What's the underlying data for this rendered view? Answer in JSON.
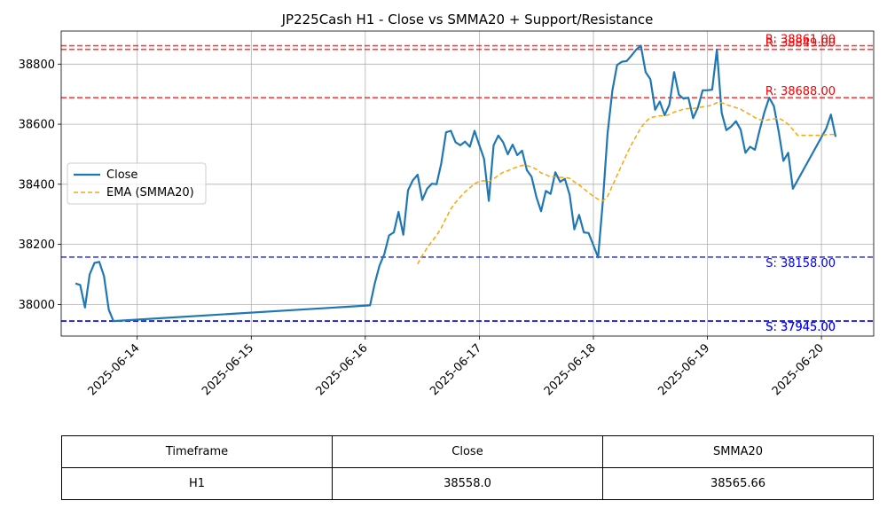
{
  "chart_data": {
    "type": "line",
    "title": "JP225Cash H1 - Close vs SMMA20 + Support/Resistance",
    "xlabel": "",
    "ylabel": "",
    "x_range": [
      "2025-06-13T08:00",
      "2025-06-20T11:00"
    ],
    "ylim": [
      37895,
      38910
    ],
    "grid": true,
    "legend_position": "center-left",
    "x_ticks": [
      "2025-06-14",
      "2025-06-15",
      "2025-06-16",
      "2025-06-17",
      "2025-06-18",
      "2025-06-19",
      "2025-06-20"
    ],
    "y_ticks": [
      38000,
      38200,
      38400,
      38600,
      38800
    ],
    "series": [
      {
        "name": "Close",
        "color": "#1f77b4",
        "style": "solid",
        "points": [
          [
            "2025-06-13T11:00",
            38070
          ],
          [
            "2025-06-13T12:00",
            38065
          ],
          [
            "2025-06-13T13:00",
            37990
          ],
          [
            "2025-06-13T14:00",
            38100
          ],
          [
            "2025-06-13T15:00",
            38138
          ],
          [
            "2025-06-13T16:00",
            38142
          ],
          [
            "2025-06-13T17:00",
            38095
          ],
          [
            "2025-06-13T18:00",
            37983
          ],
          [
            "2025-06-13T19:00",
            37945
          ],
          [
            "2025-06-16T01:00",
            37997
          ],
          [
            "2025-06-16T02:00",
            38070
          ],
          [
            "2025-06-16T03:00",
            38130
          ],
          [
            "2025-06-16T04:00",
            38168
          ],
          [
            "2025-06-16T05:00",
            38230
          ],
          [
            "2025-06-16T06:00",
            38240
          ],
          [
            "2025-06-16T07:00",
            38308
          ],
          [
            "2025-06-16T08:00",
            38232
          ],
          [
            "2025-06-16T09:00",
            38380
          ],
          [
            "2025-06-16T10:00",
            38413
          ],
          [
            "2025-06-16T11:00",
            38432
          ],
          [
            "2025-06-16T12:00",
            38348
          ],
          [
            "2025-06-16T13:00",
            38385
          ],
          [
            "2025-06-16T14:00",
            38402
          ],
          [
            "2025-06-16T15:00",
            38400
          ],
          [
            "2025-06-16T16:00",
            38470
          ],
          [
            "2025-06-16T17:00",
            38573
          ],
          [
            "2025-06-16T18:00",
            38578
          ],
          [
            "2025-06-16T19:00",
            38540
          ],
          [
            "2025-06-16T20:00",
            38530
          ],
          [
            "2025-06-16T21:00",
            38542
          ],
          [
            "2025-06-16T22:00",
            38525
          ],
          [
            "2025-06-16T23:00",
            38578
          ],
          [
            "2025-06-17T00:00",
            38530
          ],
          [
            "2025-06-17T01:00",
            38485
          ],
          [
            "2025-06-17T02:00",
            38345
          ],
          [
            "2025-06-17T03:00",
            38530
          ],
          [
            "2025-06-17T04:00",
            38562
          ],
          [
            "2025-06-17T05:00",
            38540
          ],
          [
            "2025-06-17T06:00",
            38500
          ],
          [
            "2025-06-17T07:00",
            38532
          ],
          [
            "2025-06-17T08:00",
            38497
          ],
          [
            "2025-06-17T09:00",
            38512
          ],
          [
            "2025-06-17T10:00",
            38447
          ],
          [
            "2025-06-17T11:00",
            38425
          ],
          [
            "2025-06-17T12:00",
            38358
          ],
          [
            "2025-06-17T13:00",
            38310
          ],
          [
            "2025-06-17T14:00",
            38378
          ],
          [
            "2025-06-17T15:00",
            38368
          ],
          [
            "2025-06-17T16:00",
            38440
          ],
          [
            "2025-06-17T17:00",
            38408
          ],
          [
            "2025-06-17T18:00",
            38418
          ],
          [
            "2025-06-17T19:00",
            38365
          ],
          [
            "2025-06-17T20:00",
            38250
          ],
          [
            "2025-06-17T21:00",
            38298
          ],
          [
            "2025-06-17T22:00",
            38240
          ],
          [
            "2025-06-17T23:00",
            38238
          ],
          [
            "2025-06-18T00:00",
            38197
          ],
          [
            "2025-06-18T01:00",
            38157
          ],
          [
            "2025-06-18T02:00",
            38345
          ],
          [
            "2025-06-18T03:00",
            38570
          ],
          [
            "2025-06-18T04:00",
            38712
          ],
          [
            "2025-06-18T05:00",
            38797
          ],
          [
            "2025-06-18T06:00",
            38808
          ],
          [
            "2025-06-18T07:00",
            38810
          ],
          [
            "2025-06-18T08:00",
            38828
          ],
          [
            "2025-06-18T09:00",
            38848
          ],
          [
            "2025-06-18T10:00",
            38861
          ],
          [
            "2025-06-18T11:00",
            38773
          ],
          [
            "2025-06-18T12:00",
            38750
          ],
          [
            "2025-06-18T13:00",
            38648
          ],
          [
            "2025-06-18T14:00",
            38675
          ],
          [
            "2025-06-18T15:00",
            38630
          ],
          [
            "2025-06-18T16:00",
            38665
          ],
          [
            "2025-06-18T17:00",
            38773
          ],
          [
            "2025-06-18T18:00",
            38698
          ],
          [
            "2025-06-18T19:00",
            38685
          ],
          [
            "2025-06-18T20:00",
            38688
          ],
          [
            "2025-06-18T21:00",
            38620
          ],
          [
            "2025-06-18T22:00",
            38655
          ],
          [
            "2025-06-18T23:00",
            38713
          ],
          [
            "2025-06-19T00:00",
            38713
          ],
          [
            "2025-06-19T01:00",
            38715
          ],
          [
            "2025-06-19T02:00",
            38848
          ],
          [
            "2025-06-19T03:00",
            38638
          ],
          [
            "2025-06-19T04:00",
            38580
          ],
          [
            "2025-06-19T05:00",
            38592
          ],
          [
            "2025-06-19T06:00",
            38610
          ],
          [
            "2025-06-19T07:00",
            38582
          ],
          [
            "2025-06-19T08:00",
            38505
          ],
          [
            "2025-06-19T09:00",
            38525
          ],
          [
            "2025-06-19T10:00",
            38515
          ],
          [
            "2025-06-19T11:00",
            38580
          ],
          [
            "2025-06-19T12:00",
            38640
          ],
          [
            "2025-06-19T13:00",
            38688
          ],
          [
            "2025-06-19T14:00",
            38660
          ],
          [
            "2025-06-19T15:00",
            38575
          ],
          [
            "2025-06-19T16:00",
            38478
          ],
          [
            "2025-06-19T17:00",
            38505
          ],
          [
            "2025-06-19T18:00",
            38385
          ],
          [
            "2025-06-20T01:00",
            38585
          ],
          [
            "2025-06-20T02:00",
            38632
          ],
          [
            "2025-06-20T03:00",
            38558
          ]
        ]
      },
      {
        "name": "EMA (SMMA20)",
        "color": "#ffa500",
        "style": "dashed",
        "points": [
          [
            "2025-06-16T11:00",
            38135
          ],
          [
            "2025-06-16T12:00",
            38163
          ],
          [
            "2025-06-16T13:00",
            38188
          ],
          [
            "2025-06-16T14:00",
            38210
          ],
          [
            "2025-06-16T15:00",
            38230
          ],
          [
            "2025-06-16T16:00",
            38255
          ],
          [
            "2025-06-16T17:00",
            38288
          ],
          [
            "2025-06-16T18:00",
            38318
          ],
          [
            "2025-06-16T19:00",
            38340
          ],
          [
            "2025-06-16T20:00",
            38358
          ],
          [
            "2025-06-16T21:00",
            38375
          ],
          [
            "2025-06-16T22:00",
            38388
          ],
          [
            "2025-06-16T23:00",
            38402
          ],
          [
            "2025-06-17T00:00",
            38410
          ],
          [
            "2025-06-17T01:00",
            38412
          ],
          [
            "2025-06-17T02:00",
            38408
          ],
          [
            "2025-06-17T03:00",
            38418
          ],
          [
            "2025-06-17T04:00",
            38430
          ],
          [
            "2025-06-17T05:00",
            38440
          ],
          [
            "2025-06-17T06:00",
            38445
          ],
          [
            "2025-06-17T07:00",
            38452
          ],
          [
            "2025-06-17T08:00",
            38458
          ],
          [
            "2025-06-17T09:00",
            38463
          ],
          [
            "2025-06-17T10:00",
            38462
          ],
          [
            "2025-06-17T11:00",
            38458
          ],
          [
            "2025-06-17T12:00",
            38450
          ],
          [
            "2025-06-17T13:00",
            38438
          ],
          [
            "2025-06-17T14:00",
            38432
          ],
          [
            "2025-06-17T15:00",
            38425
          ],
          [
            "2025-06-17T16:00",
            38425
          ],
          [
            "2025-06-17T17:00",
            38423
          ],
          [
            "2025-06-17T18:00",
            38423
          ],
          [
            "2025-06-17T19:00",
            38420
          ],
          [
            "2025-06-17T20:00",
            38408
          ],
          [
            "2025-06-17T21:00",
            38398
          ],
          [
            "2025-06-17T22:00",
            38385
          ],
          [
            "2025-06-17T23:00",
            38372
          ],
          [
            "2025-06-18T00:00",
            38360
          ],
          [
            "2025-06-18T01:00",
            38350
          ],
          [
            "2025-06-18T02:00",
            38345
          ],
          [
            "2025-06-18T03:00",
            38360
          ],
          [
            "2025-06-18T04:00",
            38395
          ],
          [
            "2025-06-18T05:00",
            38430
          ],
          [
            "2025-06-18T06:00",
            38465
          ],
          [
            "2025-06-18T07:00",
            38500
          ],
          [
            "2025-06-18T08:00",
            38532
          ],
          [
            "2025-06-18T09:00",
            38560
          ],
          [
            "2025-06-18T10:00",
            38588
          ],
          [
            "2025-06-18T11:00",
            38608
          ],
          [
            "2025-06-18T12:00",
            38622
          ],
          [
            "2025-06-18T13:00",
            38625
          ],
          [
            "2025-06-18T14:00",
            38628
          ],
          [
            "2025-06-18T15:00",
            38628
          ],
          [
            "2025-06-18T16:00",
            38632
          ],
          [
            "2025-06-18T17:00",
            38640
          ],
          [
            "2025-06-18T18:00",
            38645
          ],
          [
            "2025-06-18T19:00",
            38650
          ],
          [
            "2025-06-18T20:00",
            38652
          ],
          [
            "2025-06-18T21:00",
            38652
          ],
          [
            "2025-06-18T22:00",
            38655
          ],
          [
            "2025-06-18T23:00",
            38658
          ],
          [
            "2025-06-19T00:00",
            38660
          ],
          [
            "2025-06-19T01:00",
            38663
          ],
          [
            "2025-06-19T02:00",
            38672
          ],
          [
            "2025-06-19T03:00",
            38672
          ],
          [
            "2025-06-19T04:00",
            38665
          ],
          [
            "2025-06-19T05:00",
            38660
          ],
          [
            "2025-06-19T06:00",
            38655
          ],
          [
            "2025-06-19T07:00",
            38650
          ],
          [
            "2025-06-19T08:00",
            38640
          ],
          [
            "2025-06-19T09:00",
            38632
          ],
          [
            "2025-06-19T10:00",
            38622
          ],
          [
            "2025-06-19T11:00",
            38615
          ],
          [
            "2025-06-19T12:00",
            38612
          ],
          [
            "2025-06-19T13:00",
            38615
          ],
          [
            "2025-06-19T14:00",
            38618
          ],
          [
            "2025-06-19T15:00",
            38620
          ],
          [
            "2025-06-19T16:00",
            38612
          ],
          [
            "2025-06-19T17:00",
            38600
          ],
          [
            "2025-06-19T18:00",
            38582
          ],
          [
            "2025-06-19T19:00",
            38563
          ],
          [
            "2025-06-20T00:00",
            38563
          ],
          [
            "2025-06-20T01:00",
            38565
          ],
          [
            "2025-06-20T02:00",
            38566
          ],
          [
            "2025-06-20T03:00",
            38565.66
          ]
        ]
      }
    ],
    "levels": [
      {
        "kind": "resistance",
        "value": 38861.0,
        "label": "R: 38861.00",
        "color": "#ff0000"
      },
      {
        "kind": "resistance",
        "value": 38849.0,
        "label": "R: 38849.00",
        "color": "#ff0000"
      },
      {
        "kind": "resistance",
        "value": 38688.0,
        "label": "R: 38688.00",
        "color": "#ff0000"
      },
      {
        "kind": "support",
        "value": 38158.0,
        "label": "S: 38158.00",
        "color": "#0000ff"
      },
      {
        "kind": "support",
        "value": 37945.0,
        "label": "S: 37945.00",
        "color": "#0000ff"
      },
      {
        "kind": "support",
        "value": 37945.0,
        "label": "S: 37945.00",
        "color": "#0000ff"
      }
    ]
  },
  "table": {
    "headers": [
      "Timeframe",
      "Close",
      "SMMA20"
    ],
    "rows": [
      [
        "H1",
        "38558.0",
        "38565.66"
      ]
    ]
  }
}
